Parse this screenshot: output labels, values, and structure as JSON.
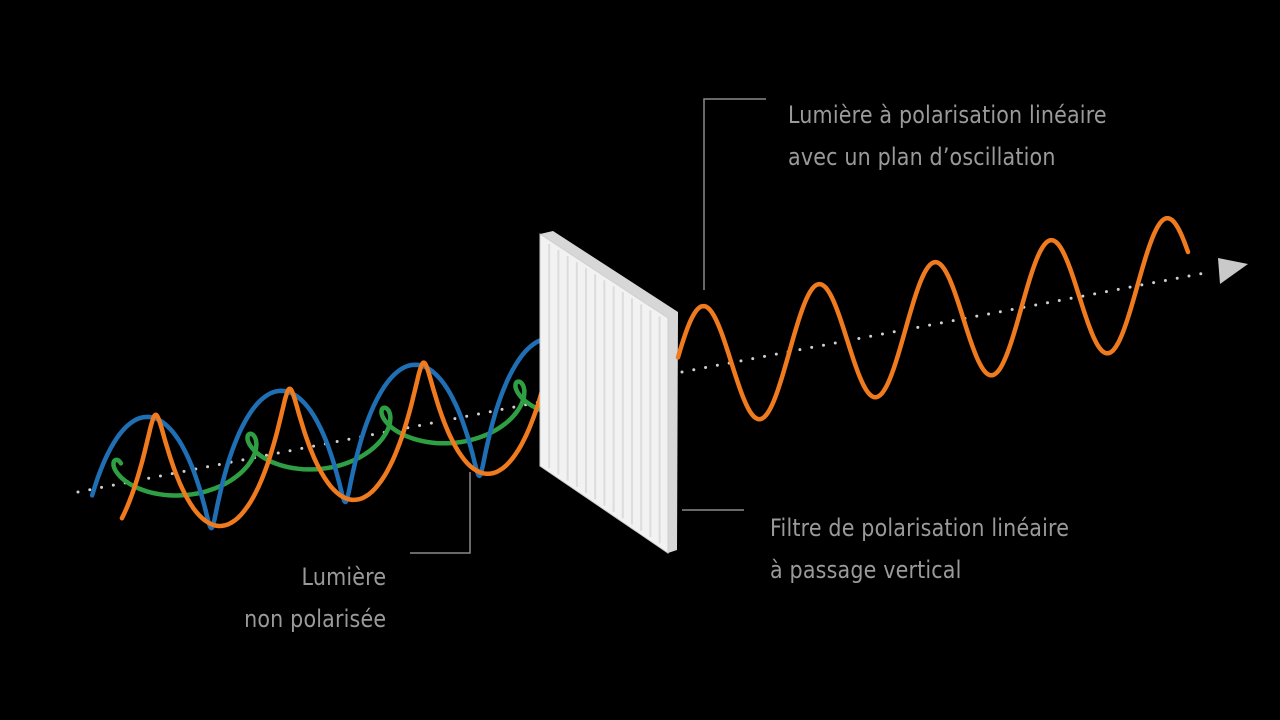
{
  "labels": {
    "output_light": {
      "line1": "Lumière à polarisation linéaire",
      "line2": "avec un plan d’oscillation"
    },
    "filter": {
      "line1": "Filtre de polarisation linéaire",
      "line2": "à passage vertical"
    },
    "input_light": {
      "line1": "Lumière",
      "line2": "non polarisée"
    }
  },
  "colors": {
    "background": "#000000",
    "text": "#9a9a9a",
    "leader_line": "#8a8a8a",
    "axis_dots": "#cfcfcf",
    "arrow_head": "#c9c9c9",
    "wave_orange": "#f07a1e",
    "wave_blue": "#1f6fb5",
    "wave_green": "#2ea043",
    "filter_face": "#f2f2f2",
    "filter_edge": "#cfcfcf",
    "filter_stripe": "#dcdcdc"
  }
}
